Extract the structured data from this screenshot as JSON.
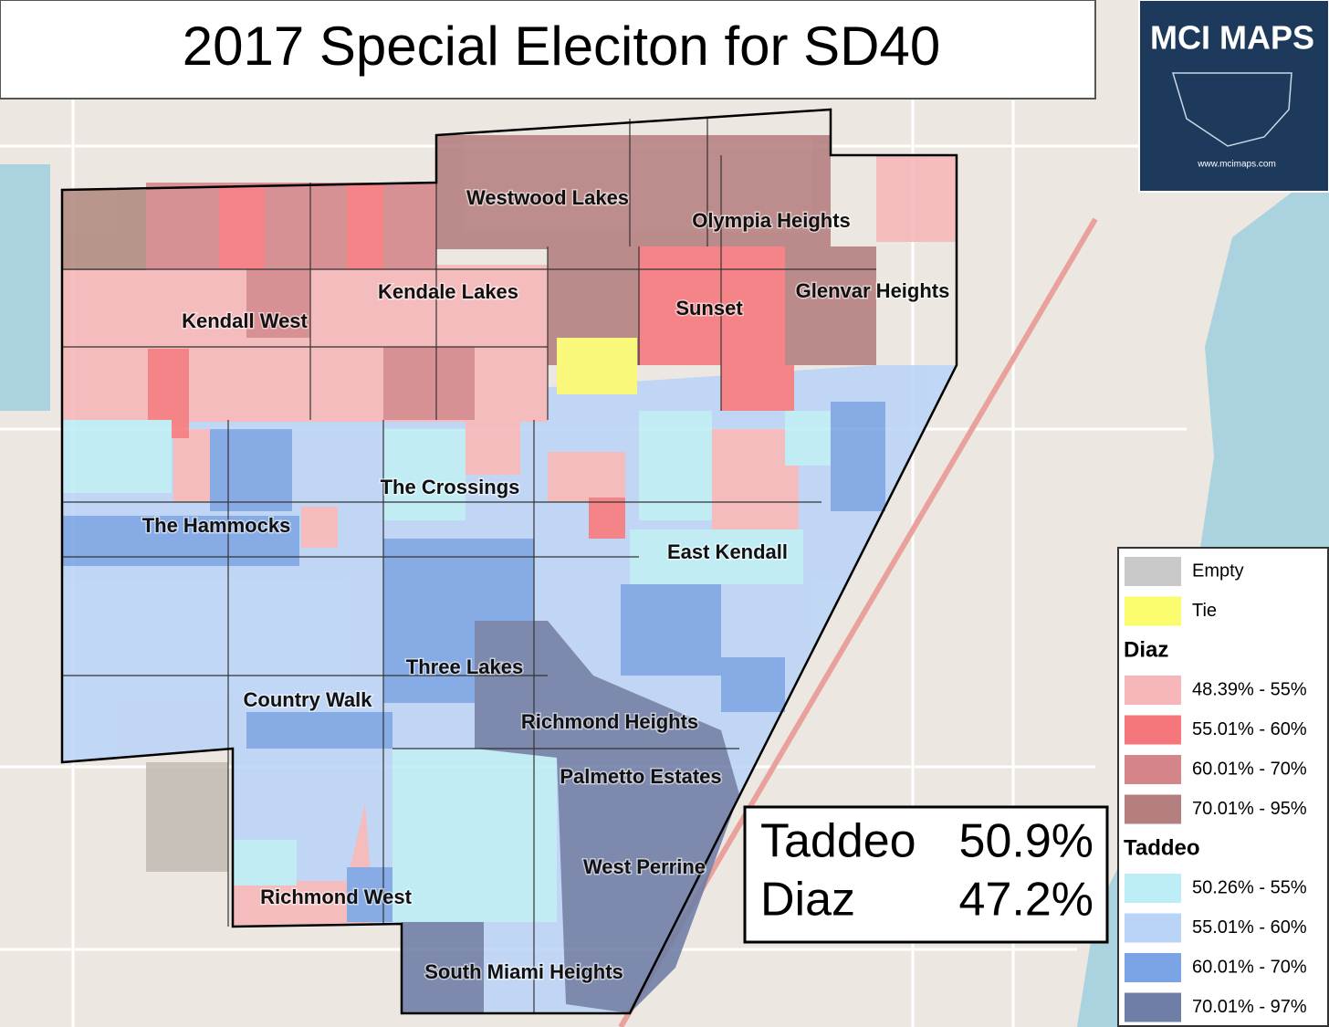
{
  "header": {
    "title": "2017 Special Eleciton for SD40"
  },
  "logo": {
    "title": "MCI MAPS",
    "url": "www.mcimaps.com"
  },
  "places": [
    {
      "label": "Westwood Lakes"
    },
    {
      "label": "Olympia Heights"
    },
    {
      "label": "Kendale Lakes"
    },
    {
      "label": "Sunset"
    },
    {
      "label": "Glenvar Heights"
    },
    {
      "label": "Kendall West"
    },
    {
      "label": "The Crossings"
    },
    {
      "label": "The Hammocks"
    },
    {
      "label": "East Kendall"
    },
    {
      "label": "Three Lakes"
    },
    {
      "label": "Country Walk"
    },
    {
      "label": "Richmond Heights"
    },
    {
      "label": "Palmetto Estates"
    },
    {
      "label": "West Perrine"
    },
    {
      "label": "Richmond West"
    },
    {
      "label": "South Miami Heights"
    }
  ],
  "legend": {
    "items": [
      {
        "label": "Empty",
        "color": "#c8c8c8"
      },
      {
        "label": "Tie",
        "color": "#fbfb6e"
      }
    ],
    "groups": [
      {
        "title": "Diaz",
        "items": [
          {
            "label": "48.39% - 55%",
            "color": "#f7b6ba"
          },
          {
            "label": "55.01% - 60%",
            "color": "#f6777b"
          },
          {
            "label": "60.01% - 70%",
            "color": "#d5848a"
          },
          {
            "label": "70.01% - 95%",
            "color": "#b57f80"
          }
        ]
      },
      {
        "title": "Taddeo",
        "items": [
          {
            "label": "50.26% - 55%",
            "color": "#bdedf6"
          },
          {
            "label": "55.01% - 60%",
            "color": "#bad4f7"
          },
          {
            "label": "60.01% - 70%",
            "color": "#7aa4e6"
          },
          {
            "label": "70.01% - 97%",
            "color": "#6f7ea6"
          }
        ]
      }
    ]
  },
  "results": [
    {
      "name": "Taddeo",
      "share": "50.9%"
    },
    {
      "name": "Diaz",
      "share": "47.2%"
    }
  ]
}
